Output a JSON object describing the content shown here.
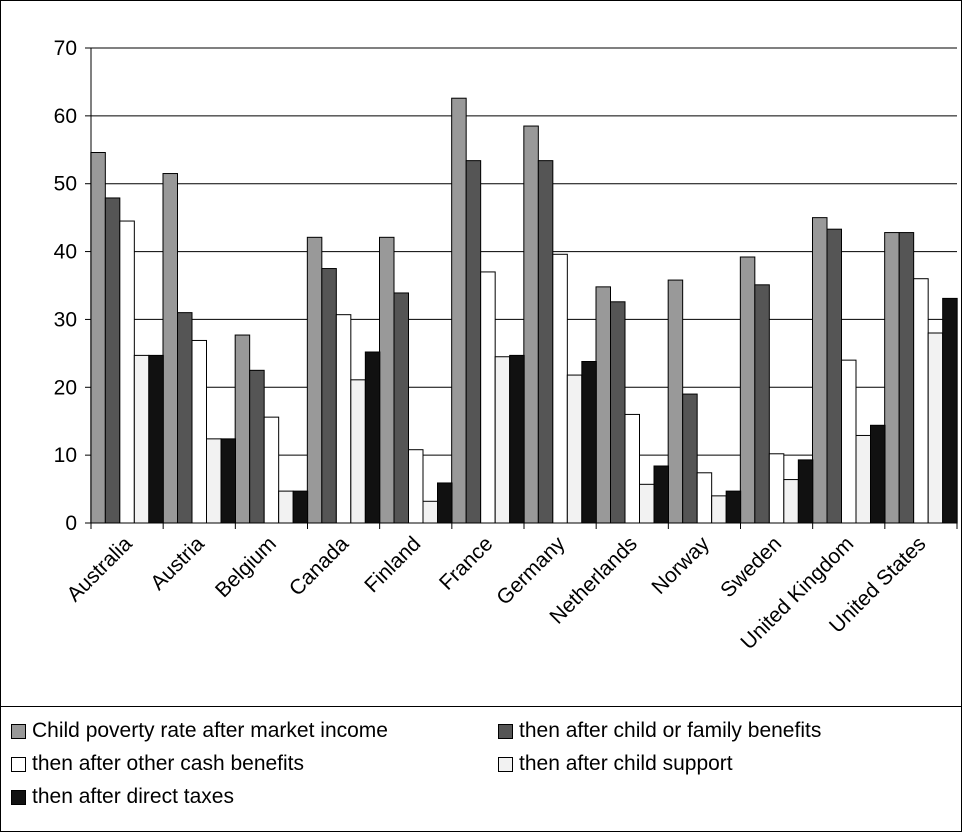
{
  "chart_data": {
    "type": "bar",
    "title": "",
    "xlabel": "",
    "ylabel": "",
    "ylim": [
      0,
      70
    ],
    "yticks": [
      "0",
      "10",
      "20",
      "30",
      "40",
      "50",
      "60",
      "70"
    ],
    "grid": true,
    "legend_position": "bottom",
    "categories": [
      "Australia",
      "Austria",
      "Belgium",
      "Canada",
      "Finland",
      "France",
      "Germany",
      "Netherlands",
      "Norway",
      "Sweden",
      "United Kingdom",
      "United States"
    ],
    "series": [
      {
        "name": "Child poverty rate  after market income",
        "color": "#999999",
        "values": [
          54.6,
          51.5,
          27.7,
          42.1,
          42.1,
          62.6,
          58.5,
          34.8,
          35.8,
          39.2,
          45.0,
          42.8
        ]
      },
      {
        "name": "then after child or family benefits",
        "color": "#555555",
        "values": [
          47.9,
          31.0,
          22.5,
          37.5,
          33.9,
          53.4,
          53.4,
          32.6,
          19.0,
          35.1,
          43.3,
          42.8
        ]
      },
      {
        "name": "then after other cash benefits",
        "color": "#ffffff",
        "values": [
          44.5,
          26.9,
          15.6,
          30.7,
          10.8,
          37.0,
          39.6,
          16.0,
          7.4,
          10.2,
          24.0,
          36.0
        ]
      },
      {
        "name": "then after child support",
        "color": "#f2f2f2",
        "values": [
          24.7,
          12.4,
          4.7,
          21.1,
          3.2,
          24.5,
          21.8,
          5.7,
          4.0,
          6.4,
          12.9,
          28.0
        ]
      },
      {
        "name": "then after direct taxes",
        "color": "#111111",
        "values": [
          24.7,
          12.4,
          4.7,
          25.2,
          5.9,
          24.7,
          23.8,
          8.4,
          4.7,
          9.3,
          14.4,
          33.1
        ]
      }
    ]
  }
}
